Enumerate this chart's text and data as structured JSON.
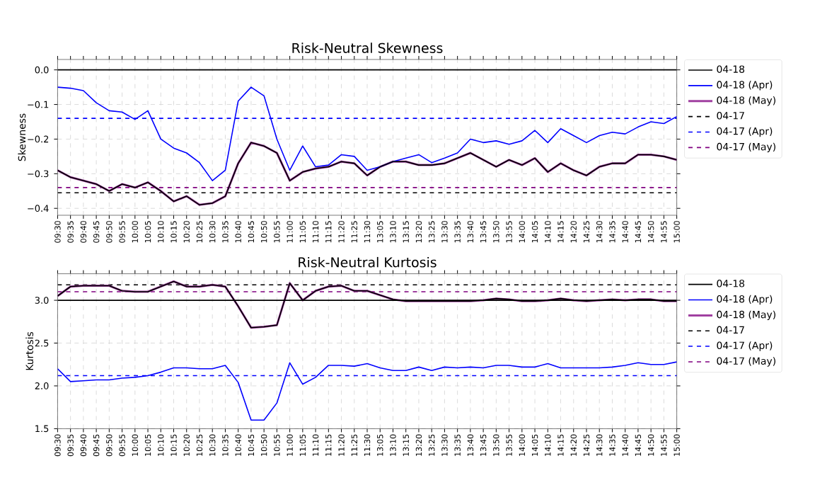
{
  "chart_data": [
    {
      "type": "line",
      "title": "Risk-Neutral Skewness",
      "ylabel": "Skewness",
      "categories": [
        "09:30",
        "09:35",
        "09:40",
        "09:45",
        "09:50",
        "09:55",
        "10:00",
        "10:05",
        "10:10",
        "10:15",
        "10:20",
        "10:25",
        "10:30",
        "10:35",
        "10:40",
        "10:45",
        "10:50",
        "10:55",
        "11:00",
        "11:05",
        "11:10",
        "11:15",
        "11:20",
        "11:25",
        "11:30",
        "13:05",
        "13:10",
        "13:15",
        "13:20",
        "13:25",
        "13:30",
        "13:35",
        "13:40",
        "13:45",
        "13:50",
        "13:55",
        "14:00",
        "14:05",
        "14:10",
        "14:15",
        "14:20",
        "14:25",
        "14:30",
        "14:35",
        "14:40",
        "14:45",
        "14:50",
        "14:55",
        "15:00"
      ],
      "series": [
        {
          "name": "04-18",
          "color": "#000000",
          "line_style": "solid",
          "values": [
            -0.29,
            -0.31,
            -0.32,
            -0.33,
            -0.35,
            -0.33,
            -0.34,
            -0.325,
            -0.35,
            -0.38,
            -0.365,
            -0.39,
            -0.385,
            -0.365,
            -0.27,
            -0.21,
            -0.22,
            -0.24,
            -0.32,
            -0.295,
            -0.285,
            -0.28,
            -0.265,
            -0.27,
            -0.305,
            -0.28,
            -0.265,
            -0.265,
            -0.275,
            -0.275,
            -0.27,
            -0.255,
            -0.24,
            -0.26,
            -0.28,
            -0.26,
            -0.275,
            -0.255,
            -0.295,
            -0.27,
            -0.29,
            -0.305,
            -0.28,
            -0.27,
            -0.27,
            -0.245,
            -0.245,
            -0.25,
            -0.26
          ]
        },
        {
          "name": "04-18 (Apr)",
          "color": "#0000ff",
          "line_style": "solid",
          "values": [
            -0.05,
            -0.053,
            -0.06,
            -0.095,
            -0.118,
            -0.122,
            -0.143,
            -0.118,
            -0.2,
            -0.226,
            -0.24,
            -0.268,
            -0.32,
            -0.29,
            -0.09,
            -0.05,
            -0.075,
            -0.2,
            -0.29,
            -0.22,
            -0.28,
            -0.275,
            -0.245,
            -0.25,
            -0.29,
            -0.28,
            -0.265,
            -0.255,
            -0.245,
            -0.268,
            -0.255,
            -0.24,
            -0.2,
            -0.21,
            -0.205,
            -0.215,
            -0.205,
            -0.175,
            -0.21,
            -0.17,
            -0.19,
            -0.21,
            -0.19,
            -0.18,
            -0.185,
            -0.165,
            -0.15,
            -0.155,
            -0.135
          ]
        },
        {
          "name": "04-18 (May)",
          "color": "#a040a0",
          "line_style": "solid",
          "values": [
            -0.29,
            -0.31,
            -0.32,
            -0.33,
            -0.35,
            -0.33,
            -0.34,
            -0.325,
            -0.35,
            -0.38,
            -0.365,
            -0.39,
            -0.385,
            -0.365,
            -0.27,
            -0.21,
            -0.22,
            -0.24,
            -0.32,
            -0.295,
            -0.285,
            -0.28,
            -0.265,
            -0.27,
            -0.305,
            -0.28,
            -0.265,
            -0.265,
            -0.275,
            -0.275,
            -0.27,
            -0.255,
            -0.24,
            -0.26,
            -0.28,
            -0.26,
            -0.275,
            -0.255,
            -0.295,
            -0.27,
            -0.29,
            -0.305,
            -0.28,
            -0.27,
            -0.27,
            -0.245,
            -0.245,
            -0.25,
            -0.26
          ]
        },
        {
          "name": "04-17",
          "color": "#000000",
          "line_style": "dashed",
          "values": [
            -0.355,
            -0.355,
            -0.355,
            -0.355,
            -0.355,
            -0.355,
            -0.355,
            -0.355,
            -0.355,
            -0.355,
            -0.355,
            -0.355,
            -0.355,
            -0.355,
            -0.355,
            -0.355,
            -0.355,
            -0.355,
            -0.355,
            -0.355,
            -0.355,
            -0.355,
            -0.355,
            -0.355,
            -0.355,
            -0.355,
            -0.355,
            -0.355,
            -0.355,
            -0.355,
            -0.355,
            -0.355,
            -0.355,
            -0.355,
            -0.355,
            -0.355,
            -0.355,
            -0.355,
            -0.355,
            -0.355,
            -0.355,
            -0.355,
            -0.355,
            -0.355,
            -0.355,
            -0.355,
            -0.355,
            -0.355,
            -0.355
          ]
        },
        {
          "name": "04-17 (Apr)",
          "color": "#0000ff",
          "line_style": "dashed",
          "values": [
            -0.14,
            -0.14,
            -0.14,
            -0.14,
            -0.14,
            -0.14,
            -0.14,
            -0.14,
            -0.14,
            -0.14,
            -0.14,
            -0.14,
            -0.14,
            -0.14,
            -0.14,
            -0.14,
            -0.14,
            -0.14,
            -0.14,
            -0.14,
            -0.14,
            -0.14,
            -0.14,
            -0.14,
            -0.14,
            -0.14,
            -0.14,
            -0.14,
            -0.14,
            -0.14,
            -0.14,
            -0.14,
            -0.14,
            -0.14,
            -0.14,
            -0.14,
            -0.14,
            -0.14,
            -0.14,
            -0.14,
            -0.14,
            -0.14,
            -0.14,
            -0.14,
            -0.14,
            -0.14,
            -0.14,
            -0.14,
            -0.14
          ]
        },
        {
          "name": "04-17 (May)",
          "color": "#800080",
          "line_style": "dashed",
          "values": [
            -0.34,
            -0.34,
            -0.34,
            -0.34,
            -0.34,
            -0.34,
            -0.34,
            -0.34,
            -0.34,
            -0.34,
            -0.34,
            -0.34,
            -0.34,
            -0.34,
            -0.34,
            -0.34,
            -0.34,
            -0.34,
            -0.34,
            -0.34,
            -0.34,
            -0.34,
            -0.34,
            -0.34,
            -0.34,
            -0.34,
            -0.34,
            -0.34,
            -0.34,
            -0.34,
            -0.34,
            -0.34,
            -0.34,
            -0.34,
            -0.34,
            -0.34,
            -0.34,
            -0.34,
            -0.34,
            -0.34,
            -0.34,
            -0.34,
            -0.34,
            -0.34,
            -0.34,
            -0.34,
            -0.34,
            -0.34,
            -0.34
          ]
        }
      ],
      "ref_lines": [
        {
          "axis": "y",
          "value": 0,
          "color": "#000000"
        }
      ],
      "ylim": [
        -0.42,
        0.03
      ],
      "yticks": [
        {
          "value": 0,
          "label": "0.0"
        },
        {
          "value": -0.1,
          "label": "−0.1"
        },
        {
          "value": -0.2,
          "label": "−0.2"
        },
        {
          "value": -0.3,
          "label": "−0.3"
        },
        {
          "value": -0.4,
          "label": "−0.4"
        }
      ],
      "grid": true,
      "legend": "right"
    },
    {
      "type": "line",
      "title": "Risk-Neutral Kurtosis",
      "ylabel": "Kurtosis",
      "categories": [
        "09:30",
        "09:35",
        "09:40",
        "09:45",
        "09:50",
        "09:55",
        "10:00",
        "10:05",
        "10:10",
        "10:15",
        "10:20",
        "10:25",
        "10:30",
        "10:35",
        "10:40",
        "10:45",
        "10:50",
        "10:55",
        "11:00",
        "11:05",
        "11:10",
        "11:15",
        "11:20",
        "11:25",
        "11:30",
        "13:05",
        "13:10",
        "13:15",
        "13:20",
        "13:25",
        "13:30",
        "13:35",
        "13:40",
        "13:45",
        "13:50",
        "13:55",
        "14:00",
        "14:05",
        "14:10",
        "14:15",
        "14:20",
        "14:25",
        "14:30",
        "14:35",
        "14:40",
        "14:45",
        "14:50",
        "14:55",
        "15:00"
      ],
      "series": [
        {
          "name": "04-18",
          "color": "#000000",
          "line_style": "solid",
          "values": [
            3.05,
            3.16,
            3.17,
            3.17,
            3.17,
            3.11,
            3.1,
            3.1,
            3.16,
            3.22,
            3.16,
            3.16,
            3.18,
            3.16,
            2.93,
            2.68,
            2.69,
            2.71,
            3.2,
            3.0,
            3.11,
            3.16,
            3.17,
            3.11,
            3.11,
            3.06,
            3.01,
            2.99,
            2.99,
            2.99,
            2.99,
            2.99,
            2.99,
            3.0,
            3.02,
            3.01,
            2.99,
            2.99,
            3.0,
            3.02,
            3.0,
            2.99,
            3.0,
            3.01,
            3.0,
            3.01,
            3.01,
            2.99,
            2.99
          ]
        },
        {
          "name": "04-18 (Apr)",
          "color": "#0000ff",
          "line_style": "solid",
          "values": [
            2.2,
            2.05,
            2.06,
            2.07,
            2.07,
            2.09,
            2.1,
            2.12,
            2.16,
            2.21,
            2.21,
            2.2,
            2.2,
            2.24,
            2.04,
            1.6,
            1.6,
            1.8,
            2.27,
            2.02,
            2.1,
            2.24,
            2.24,
            2.23,
            2.26,
            2.21,
            2.18,
            2.18,
            2.22,
            2.18,
            2.22,
            2.21,
            2.22,
            2.21,
            2.24,
            2.24,
            2.22,
            2.22,
            2.26,
            2.21,
            2.21,
            2.21,
            2.21,
            2.22,
            2.24,
            2.27,
            2.25,
            2.25,
            2.28
          ]
        },
        {
          "name": "04-18 (May)",
          "color": "#a040a0",
          "line_style": "solid",
          "values": [
            3.05,
            3.16,
            3.17,
            3.17,
            3.17,
            3.11,
            3.1,
            3.1,
            3.16,
            3.22,
            3.16,
            3.16,
            3.18,
            3.16,
            2.93,
            2.68,
            2.69,
            2.71,
            3.2,
            3.0,
            3.11,
            3.16,
            3.17,
            3.11,
            3.11,
            3.06,
            3.01,
            2.99,
            2.99,
            2.99,
            2.99,
            2.99,
            2.99,
            3.0,
            3.02,
            3.01,
            2.99,
            2.99,
            3.0,
            3.02,
            3.0,
            2.99,
            3.0,
            3.01,
            3.0,
            3.01,
            3.01,
            2.99,
            2.99
          ]
        },
        {
          "name": "04-17",
          "color": "#000000",
          "line_style": "dashed",
          "values": [
            3.18,
            3.18,
            3.18,
            3.18,
            3.18,
            3.18,
            3.18,
            3.18,
            3.18,
            3.18,
            3.18,
            3.18,
            3.18,
            3.18,
            3.18,
            3.18,
            3.18,
            3.18,
            3.18,
            3.18,
            3.18,
            3.18,
            3.18,
            3.18,
            3.18,
            3.18,
            3.18,
            3.18,
            3.18,
            3.18,
            3.18,
            3.18,
            3.18,
            3.18,
            3.18,
            3.18,
            3.18,
            3.18,
            3.18,
            3.18,
            3.18,
            3.18,
            3.18,
            3.18,
            3.18,
            3.18,
            3.18,
            3.18,
            3.18
          ]
        },
        {
          "name": "04-17 (Apr)",
          "color": "#0000ff",
          "line_style": "dashed",
          "values": [
            2.12,
            2.12,
            2.12,
            2.12,
            2.12,
            2.12,
            2.12,
            2.12,
            2.12,
            2.12,
            2.12,
            2.12,
            2.12,
            2.12,
            2.12,
            2.12,
            2.12,
            2.12,
            2.12,
            2.12,
            2.12,
            2.12,
            2.12,
            2.12,
            2.12,
            2.12,
            2.12,
            2.12,
            2.12,
            2.12,
            2.12,
            2.12,
            2.12,
            2.12,
            2.12,
            2.12,
            2.12,
            2.12,
            2.12,
            2.12,
            2.12,
            2.12,
            2.12,
            2.12,
            2.12,
            2.12,
            2.12,
            2.12,
            2.12
          ]
        },
        {
          "name": "04-17 (May)",
          "color": "#800080",
          "line_style": "dashed",
          "values": [
            3.1,
            3.1,
            3.1,
            3.1,
            3.1,
            3.1,
            3.1,
            3.1,
            3.1,
            3.1,
            3.1,
            3.1,
            3.1,
            3.1,
            3.1,
            3.1,
            3.1,
            3.1,
            3.1,
            3.1,
            3.1,
            3.1,
            3.1,
            3.1,
            3.1,
            3.1,
            3.1,
            3.1,
            3.1,
            3.1,
            3.1,
            3.1,
            3.1,
            3.1,
            3.1,
            3.1,
            3.1,
            3.1,
            3.1,
            3.1,
            3.1,
            3.1,
            3.1,
            3.1,
            3.1,
            3.1,
            3.1,
            3.1,
            3.1
          ]
        }
      ],
      "ref_lines": [
        {
          "axis": "y",
          "value": 3,
          "color": "#000000"
        }
      ],
      "ylim": [
        1.5,
        3.31
      ],
      "yticks": [
        {
          "value": 1.5,
          "label": "1.5"
        },
        {
          "value": 2,
          "label": "2.0"
        },
        {
          "value": 2.5,
          "label": "2.5"
        },
        {
          "value": 3,
          "label": "3.0"
        }
      ],
      "grid": true,
      "legend": "right"
    }
  ]
}
